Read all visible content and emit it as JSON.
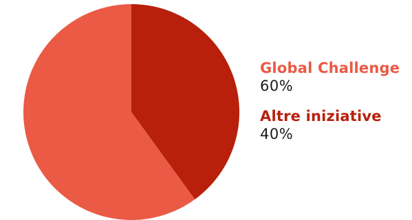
{
  "chart_data": {
    "type": "pie",
    "slices": [
      {
        "label": "Global Challenge",
        "value": 60,
        "display": "60%",
        "color": "#ea5a45"
      },
      {
        "label": "Altre iniziative",
        "value": 40,
        "display": "40%",
        "color": "#b8200c"
      }
    ],
    "legend_placement": "right"
  }
}
